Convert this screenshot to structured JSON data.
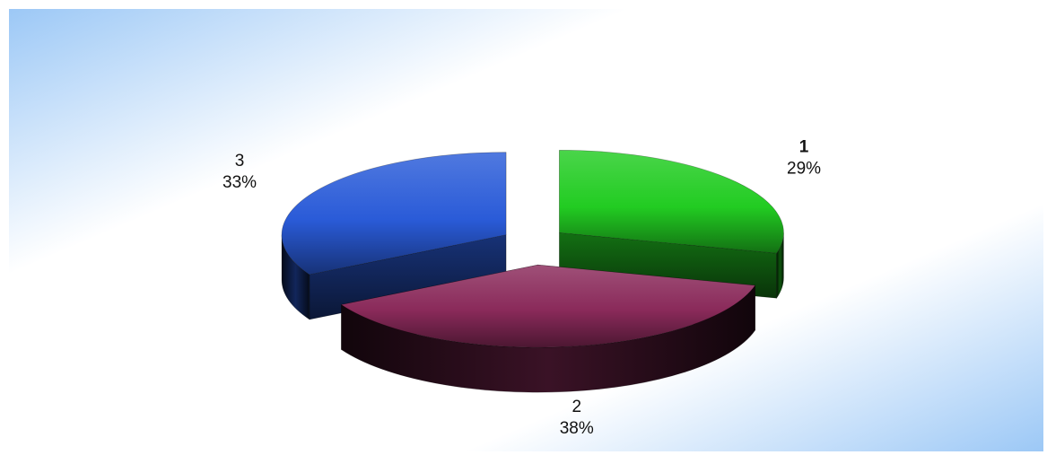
{
  "chart_data": {
    "type": "pie",
    "style": "3d-exploded",
    "title": "",
    "legend": "none",
    "slices": [
      {
        "category": "1",
        "value": 29,
        "percent_label": "29%",
        "color": "#22cc22"
      },
      {
        "category": "2",
        "value": 38,
        "percent_label": "38%",
        "color": "#8a2a5a"
      },
      {
        "category": "3",
        "value": 33,
        "percent_label": "33%",
        "color": "#2a5bd8"
      }
    ]
  },
  "colors": {
    "background_light": "#ffffff",
    "background_blue": "#9cc8f6"
  }
}
